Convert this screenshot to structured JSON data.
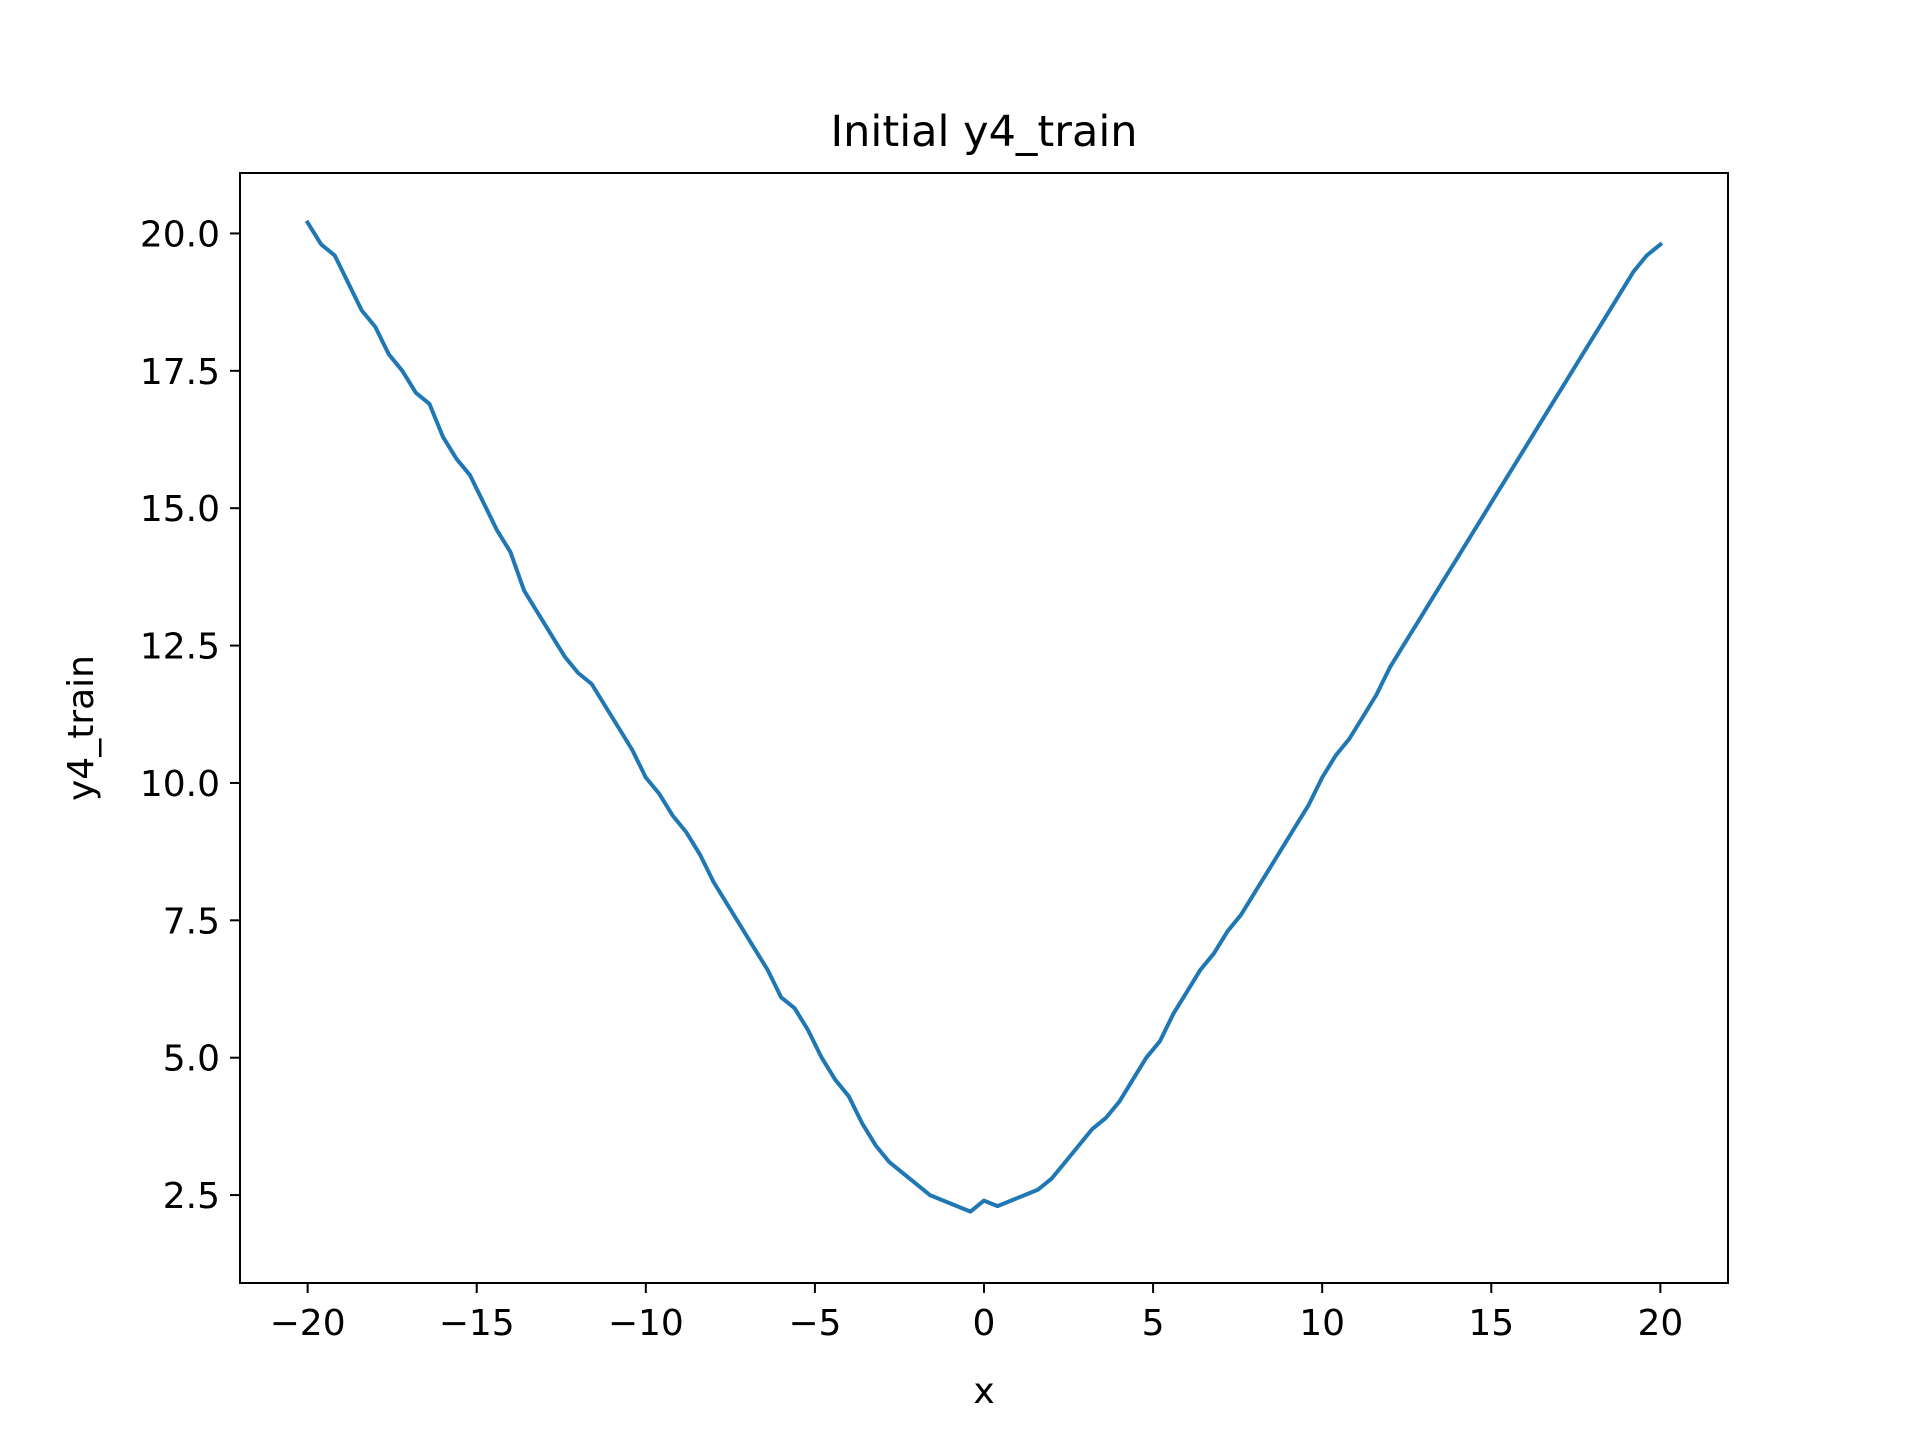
{
  "chart_data": {
    "type": "line",
    "title": "Initial y4_train",
    "xlabel": "x",
    "ylabel": "y4_train",
    "xlim": [
      -22,
      22
    ],
    "ylim": [
      0.9,
      21.1
    ],
    "xticks": [
      -20,
      -15,
      -10,
      -5,
      0,
      5,
      10,
      15,
      20
    ],
    "xtick_labels": [
      "−20",
      "−15",
      "−10",
      "−5",
      "0",
      "5",
      "10",
      "15",
      "20"
    ],
    "yticks": [
      2.5,
      5.0,
      7.5,
      10.0,
      12.5,
      15.0,
      17.5,
      20.0
    ],
    "ytick_labels": [
      "2.5",
      "5.0",
      "7.5",
      "10.0",
      "12.5",
      "15.0",
      "17.5",
      "20.0"
    ],
    "grid": false,
    "series": [
      {
        "color": "#1f77b4",
        "x": [
          -20.0,
          -19.6,
          -19.2,
          -18.8,
          -18.4,
          -18.0,
          -17.6,
          -17.2,
          -16.8,
          -16.4,
          -16.0,
          -15.6,
          -15.2,
          -14.8,
          -14.4,
          -14.0,
          -13.6,
          -13.2,
          -12.8,
          -12.4,
          -12.0,
          -11.6,
          -11.2,
          -10.8,
          -10.4,
          -10.0,
          -9.6,
          -9.2,
          -8.8,
          -8.4,
          -8.0,
          -7.6,
          -7.2,
          -6.8,
          -6.4,
          -6.0,
          -5.6,
          -5.2,
          -4.8,
          -4.4,
          -4.0,
          -3.6,
          -3.2,
          -2.8,
          -2.4,
          -2.0,
          -1.6,
          -1.2,
          -0.8,
          -0.4,
          0.0,
          0.4,
          0.8,
          1.2,
          1.6,
          2.0,
          2.4,
          2.8,
          3.2,
          3.6,
          4.0,
          4.4,
          4.8,
          5.2,
          5.6,
          6.0,
          6.4,
          6.8,
          7.2,
          7.6,
          8.0,
          8.4,
          8.8,
          9.2,
          9.6,
          10.0,
          10.4,
          10.8,
          11.2,
          11.6,
          12.0,
          12.4,
          12.8,
          13.2,
          13.6,
          14.0,
          14.4,
          14.8,
          15.2,
          15.6,
          16.0,
          16.4,
          16.8,
          17.2,
          17.6,
          18.0,
          18.4,
          18.8,
          19.2,
          19.6,
          20.0
        ],
        "y": [
          20.2,
          19.8,
          19.6,
          19.1,
          18.6,
          18.3,
          17.8,
          17.5,
          17.1,
          16.9,
          16.3,
          15.9,
          15.6,
          15.1,
          14.6,
          14.2,
          13.5,
          13.1,
          12.7,
          12.3,
          12.0,
          11.8,
          11.4,
          11.0,
          10.6,
          10.1,
          9.8,
          9.4,
          9.1,
          8.7,
          8.2,
          7.8,
          7.4,
          7.0,
          6.6,
          6.1,
          5.9,
          5.5,
          5.0,
          4.6,
          4.3,
          3.8,
          3.4,
          3.1,
          2.9,
          2.7,
          2.5,
          2.4,
          2.3,
          2.2,
          2.4,
          2.3,
          2.4,
          2.5,
          2.6,
          2.8,
          3.1,
          3.4,
          3.7,
          3.9,
          4.2,
          4.6,
          5.0,
          5.3,
          5.8,
          6.2,
          6.6,
          6.9,
          7.3,
          7.6,
          8.0,
          8.4,
          8.8,
          9.2,
          9.6,
          10.1,
          10.5,
          10.8,
          11.2,
          11.6,
          12.1,
          12.5,
          12.9,
          13.3,
          13.7,
          14.1,
          14.5,
          14.9,
          15.3,
          15.7,
          16.1,
          16.5,
          16.9,
          17.3,
          17.7,
          18.1,
          18.5,
          18.9,
          19.3,
          19.6,
          19.8
        ]
      }
    ]
  }
}
